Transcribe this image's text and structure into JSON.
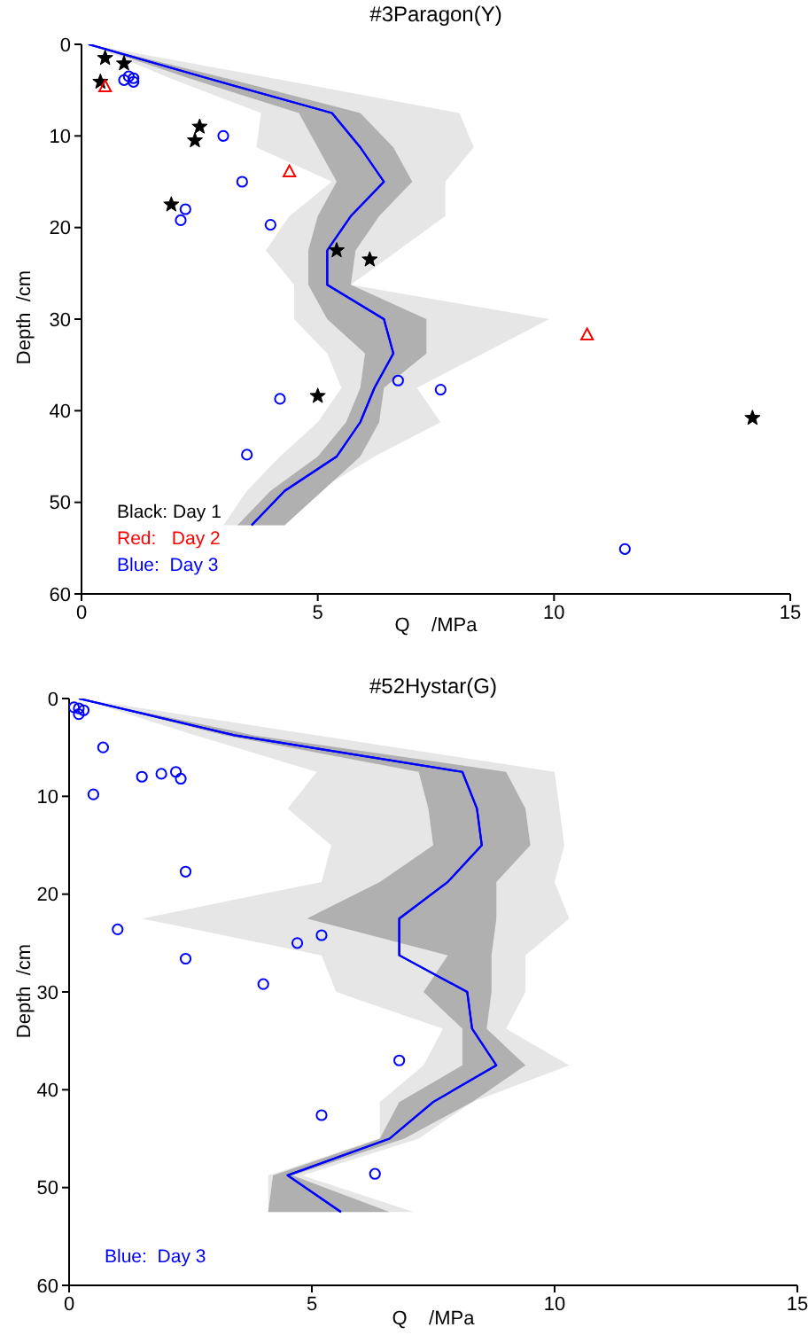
{
  "chart_data": [
    {
      "type": "line",
      "orientation": "horizontal",
      "title": "#3Paragon(Y)",
      "xlabel": "Q    /MPa",
      "ylabel": "Depth  /cm",
      "xlim": [
        0,
        15
      ],
      "xticks": [
        0,
        5,
        10,
        15
      ],
      "ylim": [
        60,
        0
      ],
      "yticks": [
        0,
        10,
        20,
        30,
        40,
        50,
        60
      ],
      "grid": false,
      "legend": "bottom left",
      "series": [
        {
          "color": "#0000ff",
          "marker": "none",
          "line_style": "solid",
          "x": [
            0,
            3.75,
            7.5,
            11.25,
            15,
            18.75,
            22.5,
            26.25,
            30,
            33.75,
            37.5,
            41.25,
            45,
            48.75,
            52.5
          ],
          "values": [
            0.15,
            2.7,
            5.3,
            5.9,
            6.4,
            5.7,
            5.2,
            5.2,
            6.4,
            6.6,
            6.2,
            5.9,
            5.4,
            4.3,
            3.6
          ],
          "lower": [
            0.15,
            1.9,
            3.8,
            3.7,
            5.3,
            4.4,
            3.9,
            4.5,
            4.5,
            5.2,
            5.5,
            5.0,
            4.2,
            3.5,
            3.0
          ],
          "upper": [
            0.15,
            4.1,
            8.0,
            8.3,
            7.7,
            7.7,
            6.7,
            5.7,
            9.9,
            8.5,
            7.1,
            7.6,
            6.2,
            5.0,
            4.3
          ]
        },
        {
          "color": "#0000ff",
          "marker": "none",
          "line_style": "solid",
          "x": [
            0,
            3.75,
            7.5,
            11.25,
            15,
            18.75,
            22.5,
            26.25,
            30,
            33.75,
            37.5,
            41.25,
            45,
            48.75,
            52.5
          ],
          "values": [
            0.15,
            2.7,
            5.3,
            5.9,
            6.4,
            5.7,
            5.2,
            5.2,
            6.4,
            6.6,
            6.2,
            5.9,
            5.4,
            4.3,
            3.6
          ],
          "lower": [
            0.15,
            2.3,
            4.6,
            5.0,
            5.4,
            5.0,
            4.8,
            4.8,
            5.2,
            6.0,
            5.9,
            5.6,
            5.0,
            4.0,
            3.3
          ],
          "upper": [
            0.15,
            3.1,
            5.9,
            6.6,
            7.0,
            6.3,
            5.8,
            5.7,
            7.3,
            7.3,
            6.4,
            6.3,
            5.9,
            5.1,
            4.3
          ]
        },
        {
          "type": "scatter",
          "name": "Black: Day 1",
          "color": "#000000",
          "marker": "star",
          "x": [
            1.5,
            2.1,
            4.1,
            9.0,
            10.5,
            17.5,
            22.5,
            23.5,
            38.4,
            40.8
          ],
          "values": [
            0.5,
            0.9,
            0.4,
            2.5,
            2.4,
            1.9,
            5.4,
            6.1,
            5.0,
            14.2
          ]
        },
        {
          "type": "scatter",
          "name": "Red:   Day 2",
          "color": "#ff0000",
          "marker": "triangle",
          "x": [
            4.6,
            13.9,
            31.7
          ],
          "values": [
            0.5,
            4.4,
            10.7
          ]
        },
        {
          "type": "scatter",
          "name": "Blue:  Day 3",
          "color": "#0000ff",
          "marker": "circle",
          "x": [
            3.9,
            3.5,
            3.7,
            4.1,
            10.0,
            15.0,
            18.0,
            19.2,
            19.7,
            38.7,
            36.7,
            37.7,
            44.8,
            55.1
          ],
          "values": [
            0.9,
            1.0,
            1.1,
            1.1,
            3.0,
            3.4,
            2.2,
            2.1,
            4.0,
            4.2,
            6.7,
            7.6,
            3.5,
            11.5
          ]
        }
      ]
    },
    {
      "type": "line",
      "orientation": "horizontal",
      "title": "#52Hystar(G)",
      "xlabel": "Q    /MPa",
      "ylabel": "Depth  /cm",
      "xlim": [
        0,
        15
      ],
      "xticks": [
        0,
        5,
        10,
        15
      ],
      "ylim": [
        60,
        0
      ],
      "yticks": [
        0,
        10,
        20,
        30,
        40,
        50,
        60
      ],
      "grid": false,
      "legend": "bottom left",
      "series": [
        {
          "color": "#0000ff",
          "marker": "none",
          "line_style": "solid",
          "x": [
            0,
            3.75,
            7.5,
            11.25,
            15,
            18.75,
            22.5,
            26.25,
            30,
            33.75,
            37.5,
            41.25,
            45,
            48.75,
            52.5
          ],
          "values": [
            0.2,
            3.4,
            8.1,
            8.4,
            8.5,
            7.8,
            6.8,
            6.8,
            8.2,
            8.3,
            8.8,
            7.5,
            6.6,
            4.5,
            5.6
          ],
          "lower": [
            0.2,
            2.6,
            5.1,
            4.5,
            5.4,
            5.2,
            1.5,
            5.2,
            5.5,
            7.7,
            7.3,
            6.4,
            6.4,
            4.1,
            4.1
          ],
          "upper": [
            0.2,
            5.1,
            10.0,
            10.1,
            10.2,
            10.0,
            10.3,
            9.4,
            9.4,
            9.0,
            10.3,
            8.3,
            7.2,
            4.8,
            7.1
          ]
        },
        {
          "color": "#0000ff",
          "marker": "none",
          "line_style": "solid",
          "x": [
            0,
            3.75,
            7.5,
            11.25,
            15,
            18.75,
            22.5,
            26.25,
            30,
            33.75,
            37.5,
            41.25,
            45,
            48.75,
            52.5
          ],
          "values": [
            0.2,
            3.4,
            8.1,
            8.4,
            8.5,
            7.8,
            6.8,
            6.8,
            8.2,
            8.3,
            8.8,
            7.5,
            6.6,
            4.5,
            5.6
          ],
          "lower": [
            0.2,
            3.2,
            7.2,
            7.4,
            7.5,
            6.4,
            4.9,
            7.8,
            7.3,
            8.1,
            8.1,
            6.8,
            6.4,
            4.2,
            4.1
          ],
          "upper": [
            0.2,
            3.8,
            9.0,
            9.4,
            9.5,
            8.8,
            8.8,
            8.7,
            8.7,
            8.6,
            9.4,
            8.3,
            6.9,
            4.6,
            6.6
          ]
        },
        {
          "type": "scatter",
          "name": "Blue:  Day 3",
          "color": "#0000ff",
          "marker": "circle",
          "x": [
            0.9,
            1.0,
            1.2,
            1.6,
            5.0,
            8.0,
            7.7,
            7.5,
            8.2,
            9.8,
            17.7,
            23.6,
            24.2,
            25.0,
            26.6,
            29.2,
            37.0,
            42.6,
            48.6
          ],
          "values": [
            0.1,
            0.2,
            0.3,
            0.2,
            0.7,
            1.5,
            1.9,
            2.2,
            2.3,
            0.5,
            2.4,
            1.0,
            5.2,
            4.7,
            2.4,
            4.0,
            6.8,
            5.2,
            6.3
          ]
        }
      ]
    }
  ]
}
